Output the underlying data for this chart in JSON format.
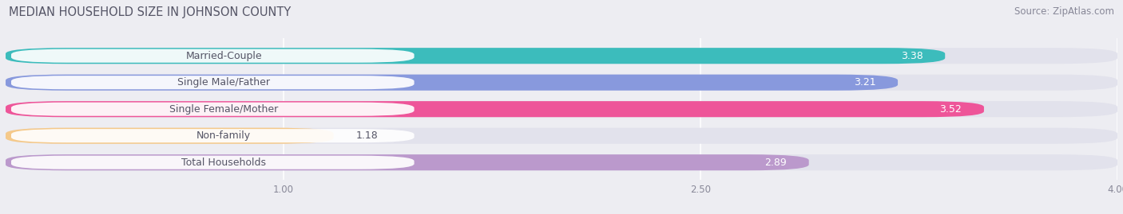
{
  "title": "MEDIAN HOUSEHOLD SIZE IN JOHNSON COUNTY",
  "source": "Source: ZipAtlas.com",
  "categories": [
    "Married-Couple",
    "Single Male/Father",
    "Single Female/Mother",
    "Non-family",
    "Total Households"
  ],
  "values": [
    3.38,
    3.21,
    3.52,
    1.18,
    2.89
  ],
  "bar_colors": [
    "#3cbcbc",
    "#8899dd",
    "#ee5599",
    "#f5c98a",
    "#bb99cc"
  ],
  "xlim": [
    0,
    4.0
  ],
  "xticks": [
    1.0,
    2.5,
    4.0
  ],
  "title_fontsize": 10.5,
  "source_fontsize": 8.5,
  "label_fontsize": 9,
  "value_fontsize": 9,
  "background_color": "#ededf2",
  "bar_background_color": "#e2e2ec",
  "label_pill_color": "#ffffff",
  "label_text_color": "#555566"
}
